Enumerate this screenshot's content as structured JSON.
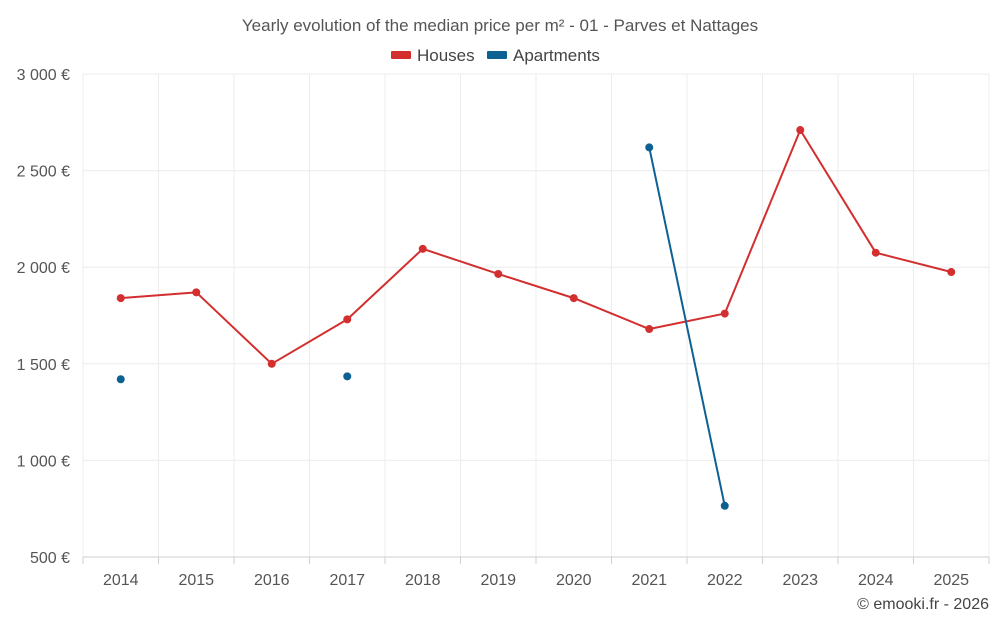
{
  "chart_data": {
    "type": "line",
    "title": "Yearly evolution of the median price per m² - 01 - Parves et Nattages",
    "categories": [
      "2014",
      "2015",
      "2016",
      "2017",
      "2018",
      "2019",
      "2020",
      "2021",
      "2022",
      "2023",
      "2024",
      "2025"
    ],
    "series": [
      {
        "name": "Houses",
        "color": "#d32f2f",
        "values": [
          1840,
          1870,
          1500,
          1730,
          2095,
          1965,
          1840,
          1680,
          1760,
          2710,
          2075,
          1975
        ]
      },
      {
        "name": "Apartments",
        "color": "#0d6192",
        "values": [
          1420,
          null,
          null,
          1435,
          null,
          null,
          null,
          2620,
          765,
          null,
          null,
          null
        ]
      }
    ],
    "ylim": [
      500,
      3000
    ],
    "yticks": [
      500,
      1000,
      1500,
      2000,
      2500,
      3000
    ],
    "ytick_labels": [
      "500 €",
      "1 000 €",
      "1 500 €",
      "2 000 €",
      "2 500 €",
      "3 000 €"
    ],
    "legend_position": "top-center",
    "grid": true
  },
  "credit": "© emooki.fr - 2026"
}
